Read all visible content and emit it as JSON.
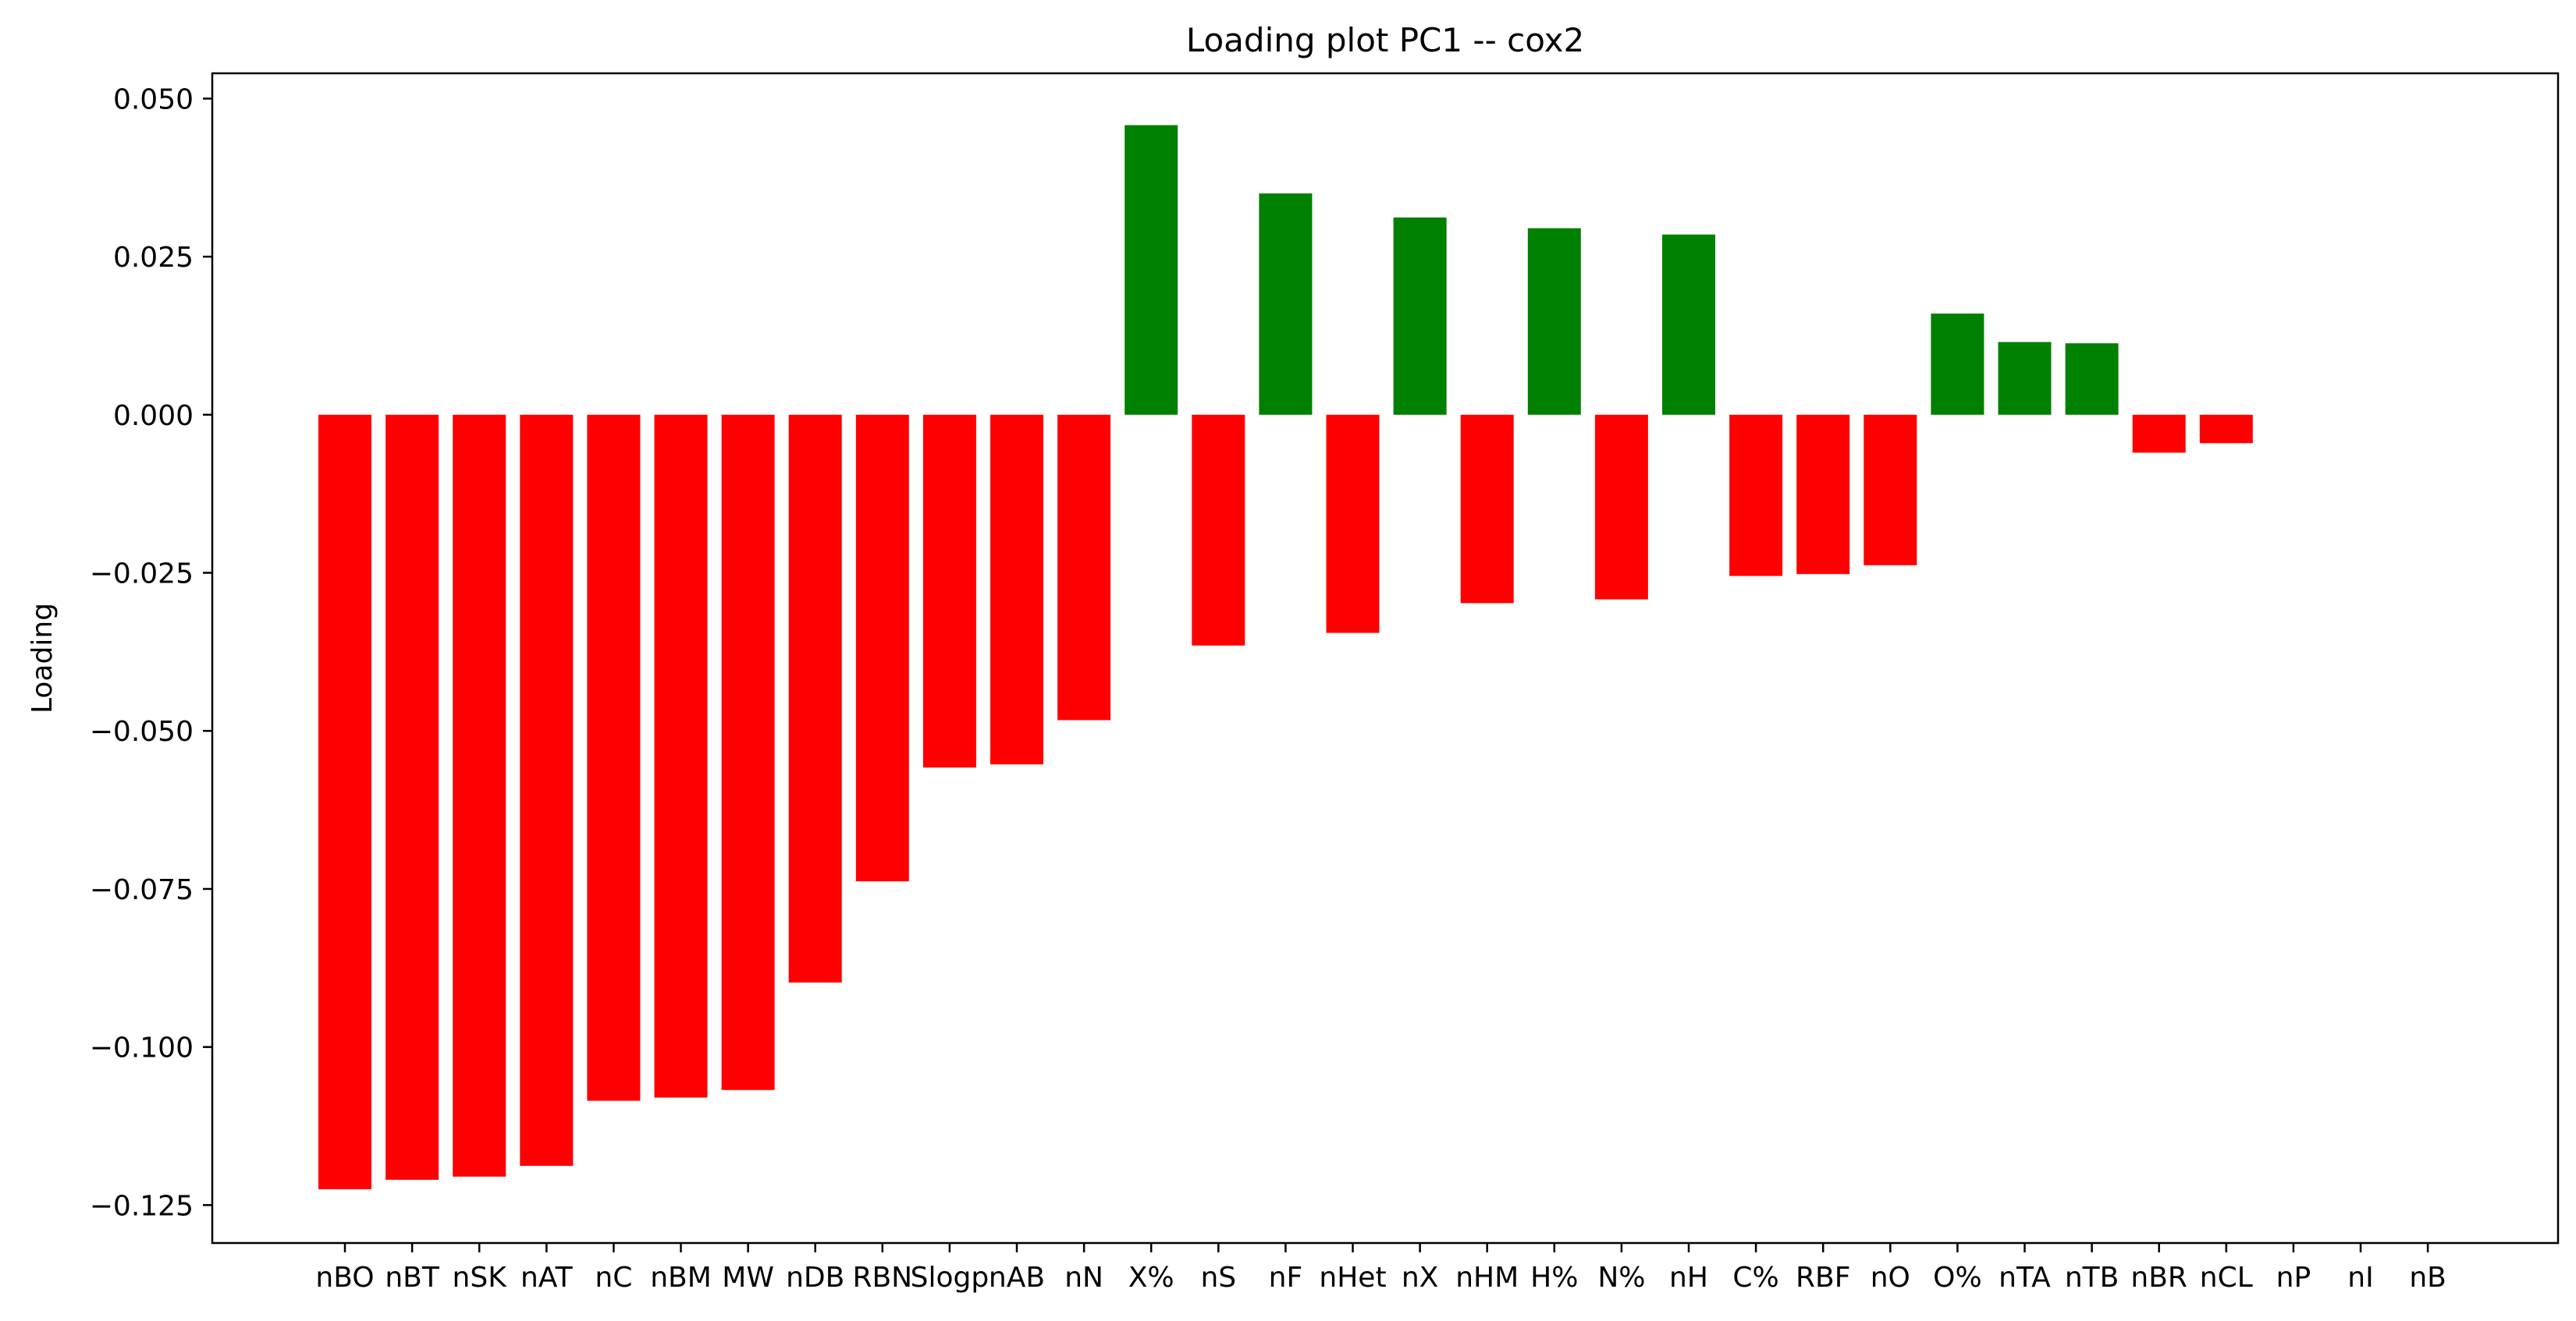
{
  "colors": {
    "positive": "#008000",
    "negative": "#ff0000",
    "background": "#ffffff",
    "axis": "#000000"
  },
  "chart_data": {
    "type": "bar",
    "title": "Loading plot PC1 -- cox2",
    "xlabel": "",
    "ylabel": "Loading",
    "ylim": [
      -0.131,
      0.054
    ],
    "yticks": [
      0.05,
      0.025,
      0.0,
      -0.025,
      -0.05,
      -0.075,
      -0.1,
      -0.125
    ],
    "ytick_labels": [
      "0.050",
      "0.025",
      "0.000",
      "−0.025",
      "−0.050",
      "−0.075",
      "−0.100",
      "−0.125"
    ],
    "grid": false,
    "categories": [
      "nBO",
      "nBT",
      "nSK",
      "nAT",
      "nC",
      "nBM",
      "MW",
      "nDB",
      "RBN",
      "Slogp",
      "nAB",
      "nN",
      "X%",
      "nS",
      "nF",
      "nHet",
      "nX",
      "nHM",
      "H%",
      "N%",
      "nH",
      "C%",
      "RBF",
      "nO",
      "O%",
      "nTA",
      "nTB",
      "nBR",
      "nCL",
      "nP",
      "nI",
      "nB"
    ],
    "values": [
      -0.1225,
      -0.121,
      -0.1205,
      -0.1188,
      -0.1085,
      -0.108,
      -0.1068,
      -0.0898,
      -0.0738,
      -0.0558,
      -0.0553,
      -0.0483,
      0.0458,
      -0.0365,
      0.035,
      -0.0345,
      0.0312,
      -0.0298,
      0.0295,
      -0.0292,
      0.0285,
      -0.0255,
      -0.0252,
      -0.0238,
      0.016,
      0.0115,
      0.0113,
      -0.006,
      -0.0045,
      0.0,
      0.0,
      0.0
    ]
  }
}
